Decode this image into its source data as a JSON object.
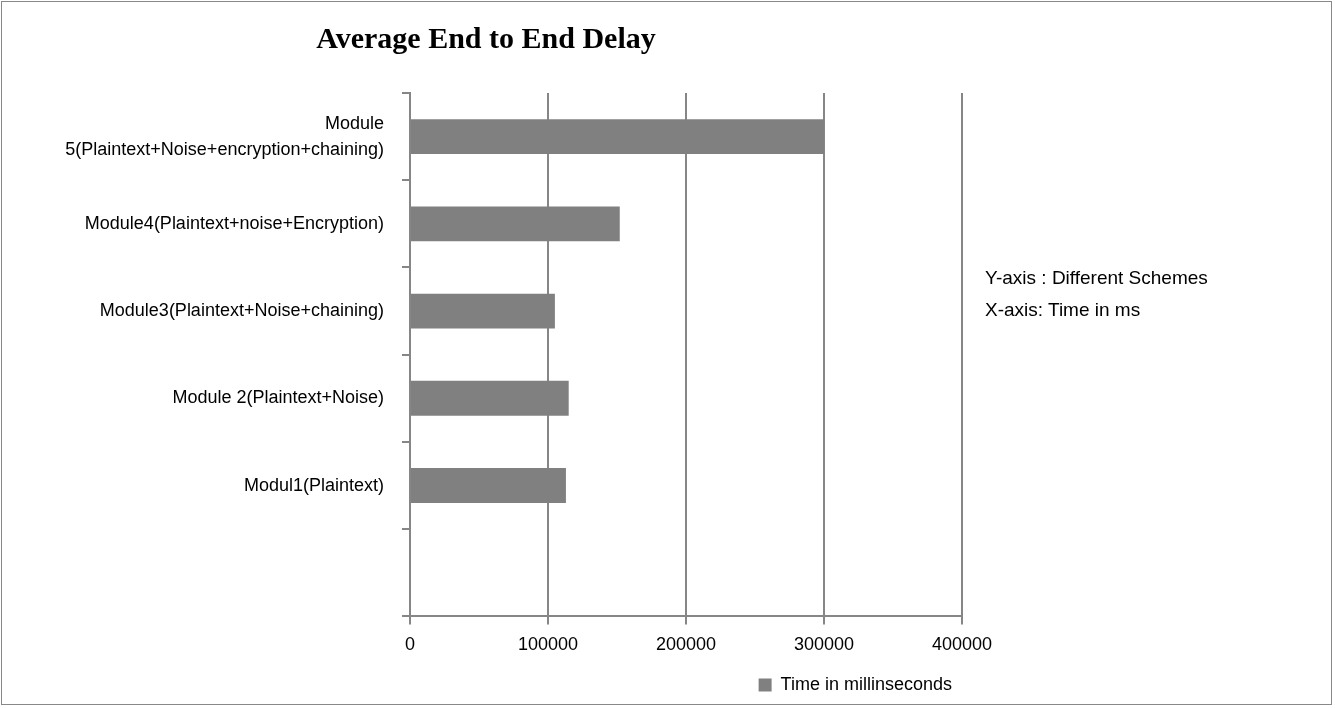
{
  "chart_data": {
    "type": "bar",
    "orientation": "horizontal",
    "title": "Average End to End Delay",
    "categories": [
      "Module 5(Plaintext+Noise+encryption+chaining)",
      "Module4(Plaintext+noise+Encryption)",
      "Module3(Plaintext+Noise+chaining)",
      "Module 2(Plaintext+Noise)",
      "Modul1(Plaintext)",
      null
    ],
    "series": [
      {
        "name": "Time in millinseconds",
        "color": "#808080",
        "values": [
          300000,
          152000,
          105000,
          115000,
          113000,
          null
        ]
      }
    ],
    "xlim": [
      0,
      400000
    ],
    "xticks": [
      0,
      100000,
      200000,
      300000,
      400000
    ],
    "grid": "x",
    "legend": "bottom right",
    "annotations": [
      "Y-axis : Different Schemes",
      "X-axis: Time in ms"
    ]
  }
}
